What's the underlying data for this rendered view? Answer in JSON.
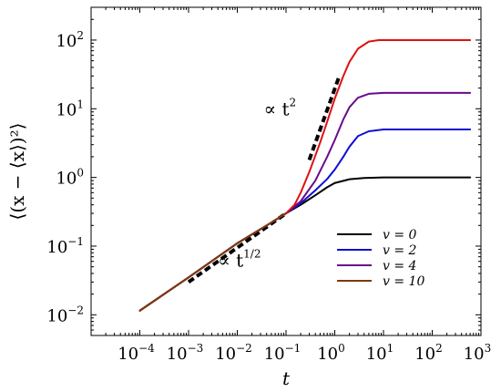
{
  "chart_data": {
    "type": "line",
    "xlabel": "t",
    "ylabel": "⟨(x − ⟨x⟩)²⟩",
    "xscale": "log",
    "yscale": "log",
    "xlim": [
      1e-05,
      1000
    ],
    "ylim": [
      0.005,
      300
    ],
    "x_ticks": [
      {
        "base": "10",
        "exp": "−4",
        "value": 0.0001
      },
      {
        "base": "10",
        "exp": "−3",
        "value": 0.001
      },
      {
        "base": "10",
        "exp": "−2",
        "value": 0.01
      },
      {
        "base": "10",
        "exp": "−1",
        "value": 0.1
      },
      {
        "base": "10",
        "exp": "0",
        "value": 1
      },
      {
        "base": "10",
        "exp": "1",
        "value": 10
      },
      {
        "base": "10",
        "exp": "2",
        "value": 100
      },
      {
        "base": "10",
        "exp": "3",
        "value": 1000
      }
    ],
    "y_ticks": [
      {
        "base": "10",
        "exp": "−2",
        "value": 0.01
      },
      {
        "base": "10",
        "exp": "−1",
        "value": 0.1
      },
      {
        "base": "10",
        "exp": "0",
        "value": 1
      },
      {
        "base": "10",
        "exp": "1",
        "value": 10
      },
      {
        "base": "10",
        "exp": "2",
        "value": 100
      }
    ],
    "grid": false,
    "legend_position": "lower-right",
    "series": [
      {
        "name": "v = 0",
        "color": "#000000",
        "x": [
          0.0001,
          0.001,
          0.01,
          0.05,
          0.1,
          0.2,
          0.4,
          0.7,
          1,
          2,
          4,
          10,
          50,
          600
        ],
        "y": [
          0.0115,
          0.035,
          0.11,
          0.22,
          0.3,
          0.4,
          0.55,
          0.72,
          0.83,
          0.94,
          0.98,
          1.0,
          1.0,
          1.0
        ]
      },
      {
        "name": "v = 2",
        "color": "#1010d0",
        "x": [
          0.0001,
          0.001,
          0.01,
          0.05,
          0.1,
          0.2,
          0.4,
          0.7,
          1,
          1.5,
          2,
          3,
          5,
          10,
          50,
          600
        ],
        "y": [
          0.0115,
          0.035,
          0.11,
          0.22,
          0.3,
          0.42,
          0.65,
          0.95,
          1.3,
          2.0,
          2.8,
          4.0,
          4.7,
          5.0,
          5.0,
          5.0
        ]
      },
      {
        "name": "v = 4",
        "color": "#6a0a8a",
        "x": [
          0.0001,
          0.001,
          0.01,
          0.05,
          0.1,
          0.2,
          0.4,
          0.7,
          1,
          1.5,
          2,
          3,
          5,
          10,
          50,
          600
        ],
        "y": [
          0.0115,
          0.035,
          0.11,
          0.22,
          0.3,
          0.45,
          0.9,
          2.0,
          3.5,
          7.0,
          10.5,
          14.5,
          16.5,
          17.0,
          17.0,
          17.0
        ]
      },
      {
        "name": "v = 10",
        "color": "#e01010",
        "legend_color": "#7a3a10",
        "x": [
          0.0001,
          0.001,
          0.01,
          0.05,
          0.1,
          0.15,
          0.2,
          0.3,
          0.5,
          0.7,
          1,
          1.5,
          2,
          3,
          5,
          8,
          15,
          50,
          600
        ],
        "y": [
          0.0115,
          0.035,
          0.11,
          0.22,
          0.3,
          0.4,
          0.6,
          1.2,
          3.2,
          6.5,
          14,
          30,
          48,
          75,
          95,
          100,
          100,
          100,
          100
        ]
      }
    ],
    "reference_lines": [
      {
        "label_base": "∝ t",
        "label_exp": "1/2",
        "x": [
          0.001,
          0.1
        ],
        "y": [
          0.03,
          0.3
        ],
        "color": "#000000",
        "label_at": [
          0.004,
          0.05
        ]
      },
      {
        "label_base": "∝ t",
        "label_exp": "2",
        "x": [
          0.3,
          1.2
        ],
        "y": [
          1.8,
          28
        ],
        "color": "#000000",
        "label_at": [
          0.035,
          8
        ]
      }
    ]
  }
}
